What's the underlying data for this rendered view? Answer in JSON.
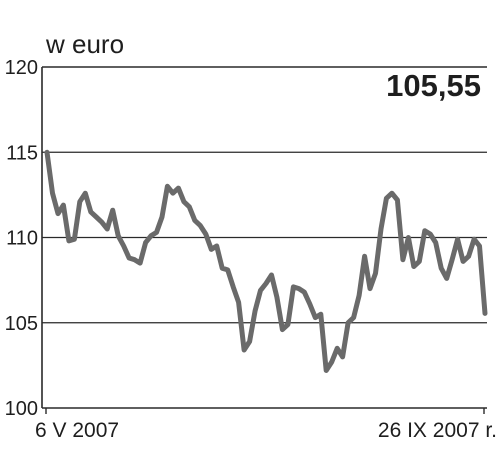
{
  "chart_data": {
    "type": "line",
    "title": "",
    "ylabel": "w euro",
    "xlabel": "",
    "x_start_label": "6 V 2007",
    "x_end_label": "26 IX 2007 r.",
    "last_value_label": "105,55",
    "ylim": [
      100,
      120
    ],
    "yticks": [
      100,
      105,
      110,
      115,
      120
    ],
    "grid": "horizontal",
    "legend": "none",
    "series": [
      {
        "values": [
          115.0,
          112.6,
          111.4,
          111.9,
          109.8,
          109.9,
          112.1,
          112.6,
          111.5,
          111.2,
          110.9,
          110.5,
          111.6,
          110.1,
          109.5,
          108.8,
          108.7,
          108.5,
          109.7,
          110.1,
          110.3,
          111.2,
          113.0,
          112.6,
          112.9,
          112.1,
          111.8,
          111.0,
          110.7,
          110.2,
          109.3,
          109.5,
          108.2,
          108.1,
          107.1,
          106.2,
          103.4,
          103.9,
          105.7,
          106.9,
          107.3,
          107.8,
          106.5,
          104.6,
          104.9,
          107.1,
          107.0,
          106.8,
          106.1,
          105.3,
          105.5,
          102.2,
          102.7,
          103.5,
          103.0,
          105.0,
          105.3,
          106.6,
          108.9,
          107.0,
          107.9,
          110.5,
          112.3,
          112.6,
          112.2,
          108.7,
          110.0,
          108.3,
          108.6,
          110.4,
          110.2,
          109.7,
          108.2,
          107.6,
          108.7,
          109.9,
          108.6,
          108.9,
          109.9,
          109.5,
          105.55
        ]
      }
    ],
    "colors": {
      "line": "#6a6a6a",
      "grid": "#2a2a2a",
      "text": "#1e1e1e"
    }
  }
}
